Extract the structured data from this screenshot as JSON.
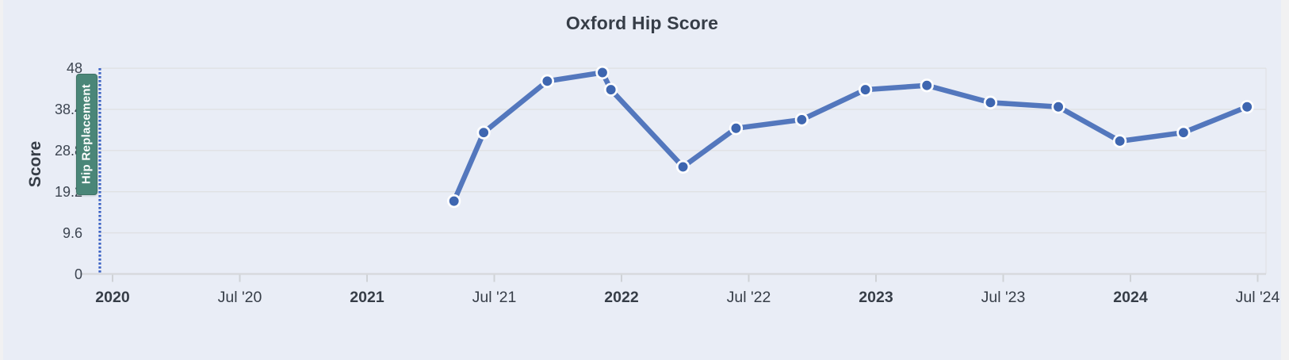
{
  "page": {
    "background": "#f1f1f2",
    "panel_background": "#e9edf6"
  },
  "chart_data": {
    "type": "line",
    "title": "Oxford Hip Score",
    "ylabel": "Score",
    "xlabel": "",
    "ylim": [
      0,
      48
    ],
    "grid": true,
    "legend_position": "none",
    "x_axis_unit": "months_since_jan_2020",
    "y_ticks": [
      {
        "label": "48",
        "value": 48
      },
      {
        "label": "38.4",
        "value": 38.4
      },
      {
        "label": "28.8",
        "value": 28.8
      },
      {
        "label": "19.2",
        "value": 19.2
      },
      {
        "label": "9.6",
        "value": 9.6
      },
      {
        "label": "0",
        "value": 0
      }
    ],
    "x_ticks": [
      {
        "label": "2020",
        "month": 0,
        "bold": true
      },
      {
        "label": "Jul '20",
        "month": 6,
        "bold": false
      },
      {
        "label": "2021",
        "month": 12,
        "bold": true
      },
      {
        "label": "Jul '21",
        "month": 18,
        "bold": false
      },
      {
        "label": "2022",
        "month": 24,
        "bold": true
      },
      {
        "label": "Jul '22",
        "month": 30,
        "bold": false
      },
      {
        "label": "2023",
        "month": 36,
        "bold": true
      },
      {
        "label": "Jul '23",
        "month": 42,
        "bold": false
      },
      {
        "label": "2024",
        "month": 48,
        "bold": true
      },
      {
        "label": "Jul '24",
        "month": 54,
        "bold": false
      }
    ],
    "series": [
      {
        "name": "Oxford Hip Score",
        "line_color": "#5377bd",
        "marker_color": "#3e66b0",
        "marker_ring_color": "#ffffff",
        "points": [
          {
            "date": "May '21",
            "month": 16.1,
            "value": 17
          },
          {
            "date": "Jun '21",
            "month": 17.5,
            "value": 33
          },
          {
            "date": "Sep '21",
            "month": 20.5,
            "value": 45
          },
          {
            "date": "Dec '21",
            "month": 23.1,
            "value": 47
          },
          {
            "date": "Dec '21",
            "month": 23.5,
            "value": 43
          },
          {
            "date": "Mar '22",
            "month": 26.9,
            "value": 25
          },
          {
            "date": "Jun '22",
            "month": 29.4,
            "value": 34
          },
          {
            "date": "Sep '22",
            "month": 32.5,
            "value": 36
          },
          {
            "date": "Dec '22",
            "month": 35.5,
            "value": 43
          },
          {
            "date": "Mar '23",
            "month": 38.4,
            "value": 44
          },
          {
            "date": "Jun '23",
            "month": 41.4,
            "value": 40
          },
          {
            "date": "Sep '23",
            "month": 44.6,
            "value": 39
          },
          {
            "date": "Dec '23",
            "month": 47.5,
            "value": 31
          },
          {
            "date": "Mar '24",
            "month": 50.5,
            "value": 33
          },
          {
            "date": "Jun '24",
            "month": 53.5,
            "value": 39
          }
        ]
      }
    ],
    "event_marker": {
      "label": "Hip Replacement",
      "month": -0.6,
      "line_color": "#3b62c4",
      "badge_color": "#4a8678",
      "badge_text_color": "#ffffff"
    }
  },
  "colors": {
    "title_text": "#363d47",
    "axis_text": "#3d4551",
    "gridline": "#e0e1e4",
    "axis_line": "#d7d9dd",
    "tick_mark": "#cfd2d6"
  }
}
